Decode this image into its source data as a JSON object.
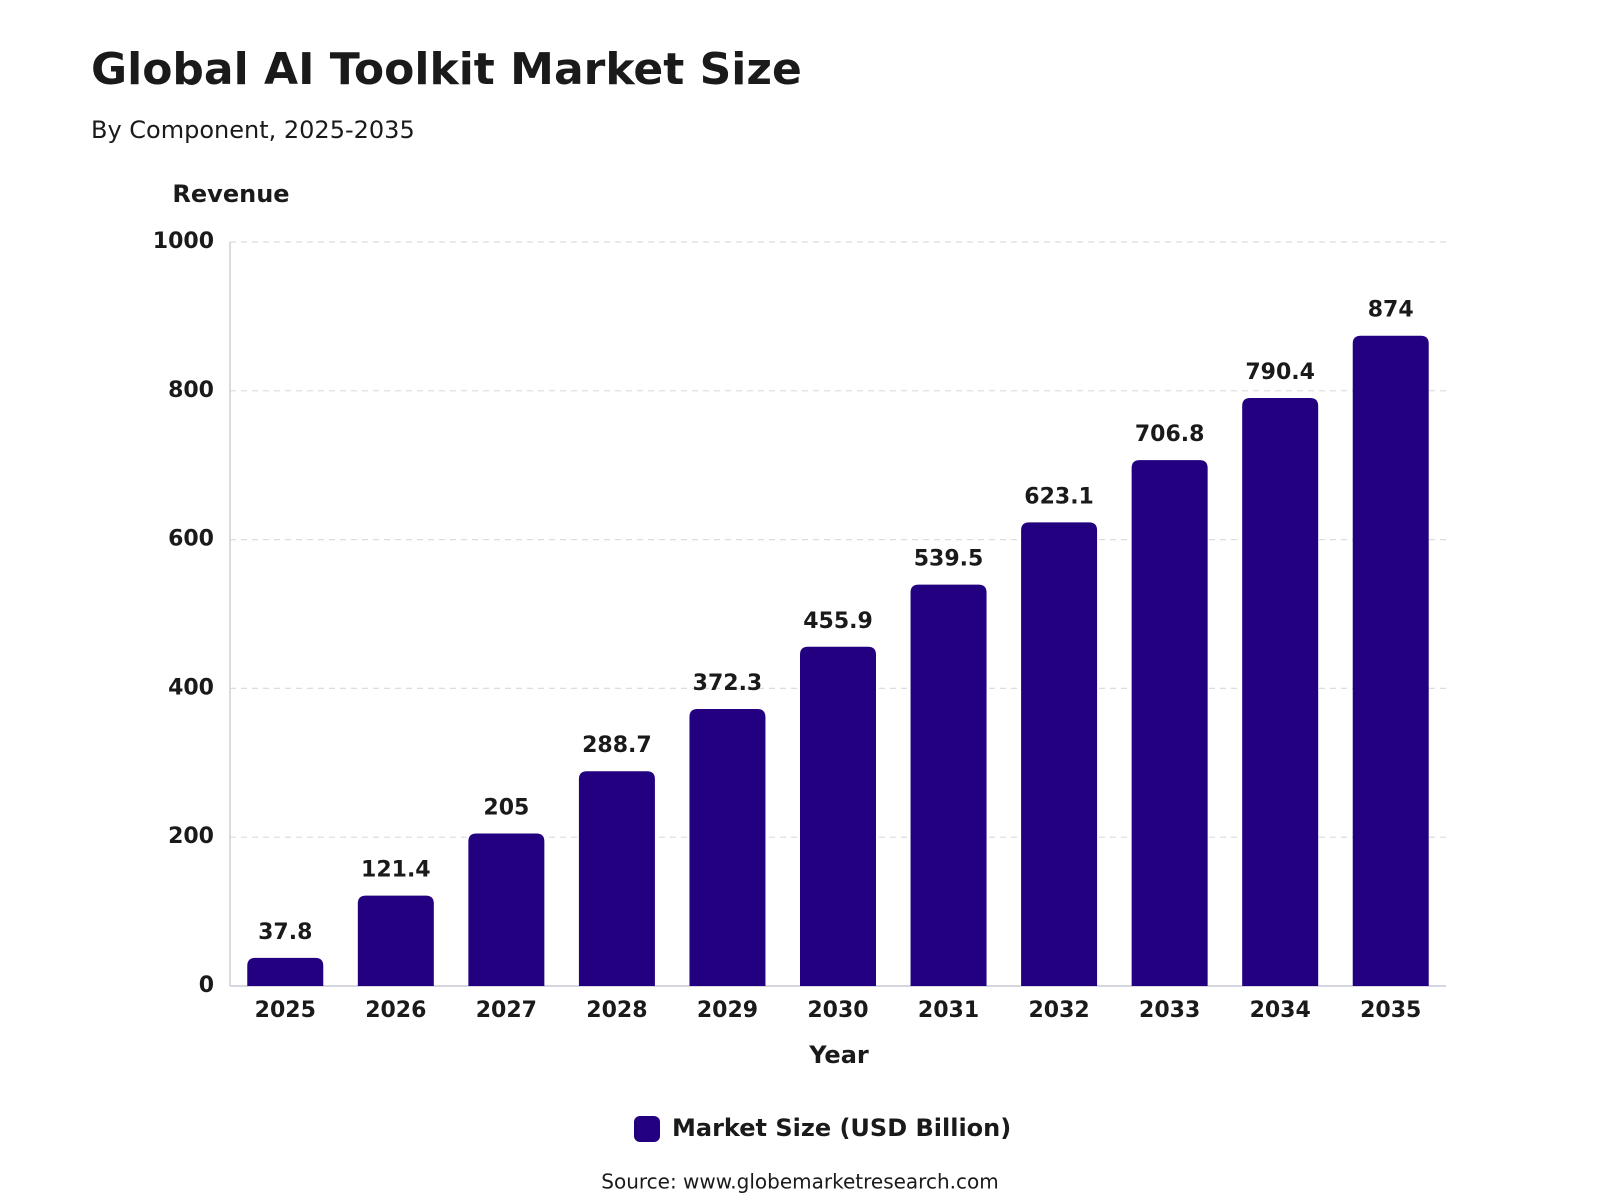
{
  "chart_data": {
    "type": "bar",
    "title": "Global AI Toolkit Market Size",
    "subtitle": "By Component, 2025-2035",
    "y_label": "Revenue",
    "x_label": "Year",
    "source": "Source: www.globemarketresearch.com",
    "categories": [
      "2025",
      "2026",
      "2027",
      "2028",
      "2029",
      "2030",
      "2031",
      "2032",
      "2033",
      "2034",
      "2035"
    ],
    "series": [
      {
        "name": "Market Size (USD Billion)",
        "color": "#22007f",
        "values": [
          37.8,
          121.4,
          205,
          288.7,
          372.3,
          455.9,
          539.5,
          623.1,
          706.8,
          790.4,
          874
        ]
      }
    ],
    "ylim": [
      0,
      1000
    ],
    "yticks": [
      0,
      200,
      400,
      600,
      800,
      1000
    ],
    "grid": true,
    "legend": "bottom"
  }
}
